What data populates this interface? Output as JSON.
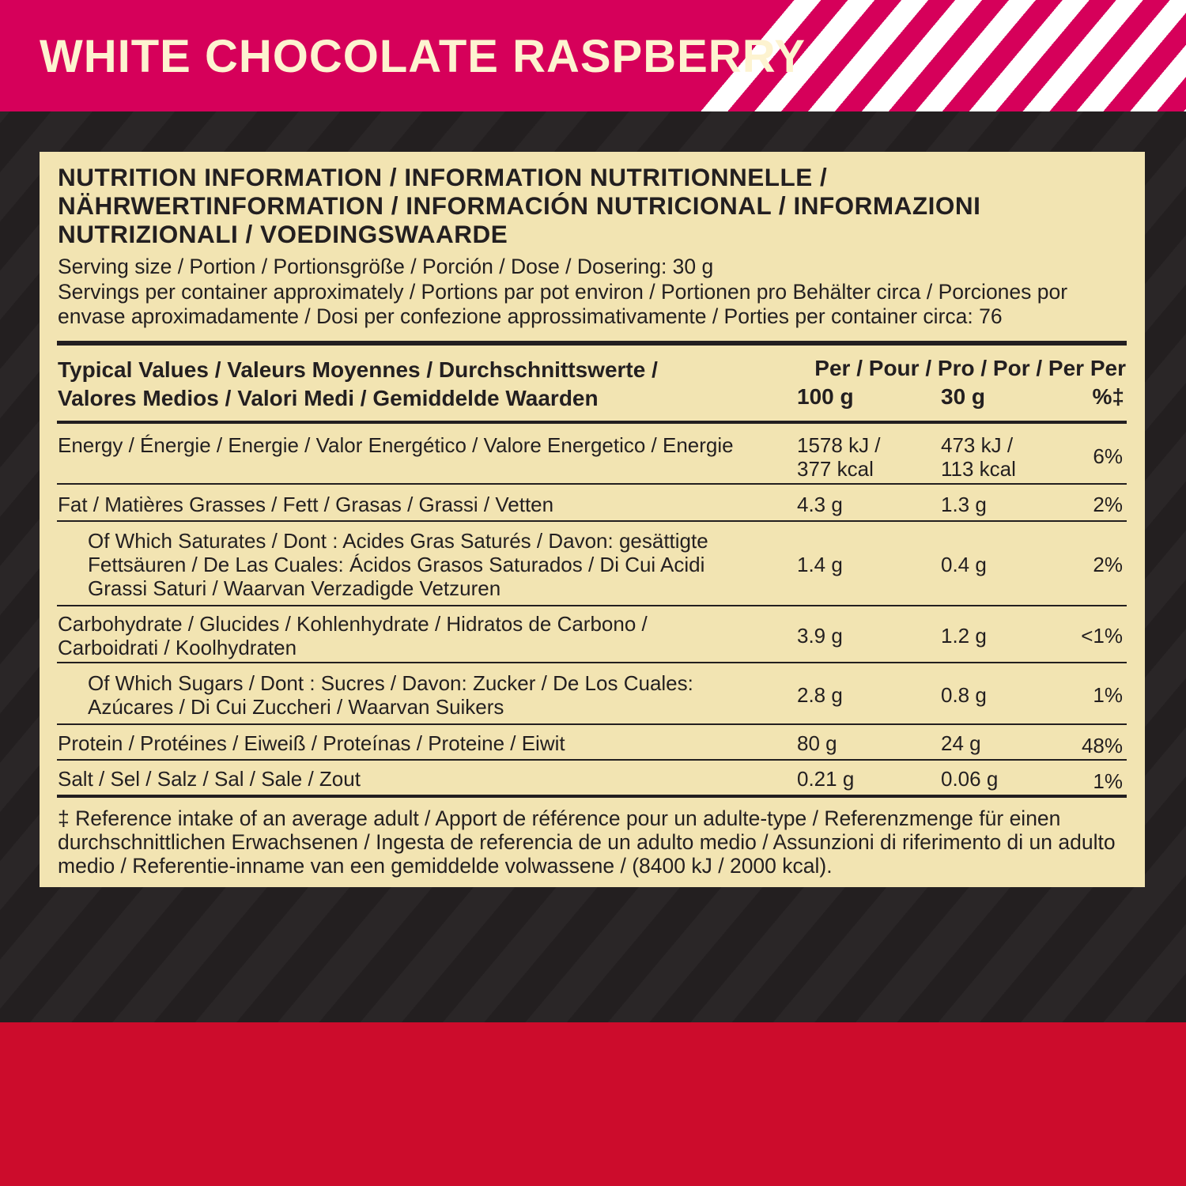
{
  "flavor": "WHITE CHOCOLATE RASPBERRY",
  "colors": {
    "header": "#d6005a",
    "background": "#231f20",
    "panel": "#f2e4b2",
    "bottom": "#cc0c2c",
    "flavor_text": "#fdf3d0"
  },
  "panel": {
    "title": "NUTRITION INFORMATION / INFORMATION NUTRITIONNELLE / NÄHRWERTINFORMATION / INFORMACIÓN NUTRICIONAL / INFORMAZIONI NUTRIZIONALI / VOEDINGSWAARDE",
    "serving_size": "Serving size / Portion / Portionsgröße / Porción / Dose / Dosering: 30 g",
    "servings_per_container": "Servings per container approximately / Portions par pot environ / Portionen pro Behälter circa / Porciones por envase aproximadamente / Dosi per confezione approssimativamente / Porties per container circa: 76",
    "table_header": {
      "label_line1": "Typical Values / Valeurs Moyennes / Durchschnittswerte /",
      "label_line2": "Valores Medios / Valori Medi / Gemiddelde Waarden",
      "per_line": "Per / Pour / Pro / Por / Per Per",
      "col1": "100 g",
      "col2": "30 g",
      "col3": "%‡"
    },
    "rows": [
      {
        "label": "Energy / Énergie / Energie / Valor Energético / Valore Energetico / Energie",
        "per100": "1578 kJ / 377 kcal",
        "per30": "473 kJ / 113 kcal",
        "ri": "6%"
      },
      {
        "label": "Fat / Matières Grasses / Fett / Grasas / Grassi / Vetten",
        "per100": "4.3 g",
        "per30": "1.3 g",
        "ri": "2%"
      },
      {
        "label": "Of Which Saturates / Dont : Acides Gras Saturés / Davon: gesättigte Fettsäuren / De Las Cuales: Ácidos Grasos Saturados / Di Cui Acidi Grassi Saturi / Waarvan Verzadigde Vetzuren",
        "per100": "1.4 g",
        "per30": "0.4 g",
        "ri": "2%"
      },
      {
        "label": "Carbohydrate / Glucides / Kohlenhydrate / Hidratos de Carbono / Carboidrati / Koolhydraten",
        "per100": "3.9 g",
        "per30": "1.2 g",
        "ri": "<1%"
      },
      {
        "label": "Of Which Sugars / Dont : Sucres / Davon: Zucker / De Los Cuales: Azúcares / Di Cui Zuccheri / Waarvan Suikers",
        "per100": "2.8 g",
        "per30": "0.8 g",
        "ri": "1%"
      },
      {
        "label": "Protein / Protéines / Eiweiß / Proteínas / Proteine / Eiwit",
        "per100": "80 g",
        "per30": "24 g",
        "ri": "48%"
      },
      {
        "label": "Salt / Sel / Salz / Sal / Sale / Zout",
        "per100": "0.21 g",
        "per30": "0.06 g",
        "ri": "1%"
      }
    ],
    "footnote": "‡ Reference intake of an average adult / Apport de référence pour un adulte-type / Referenzmenge für einen durchschnittlichen Erwachsenen / Ingesta de referencia de un adulto medio / Assunzioni di riferimento di un adulto medio / Referentie-inname van een gemiddelde volwassene / (8400 kJ / 2000 kcal)."
  }
}
